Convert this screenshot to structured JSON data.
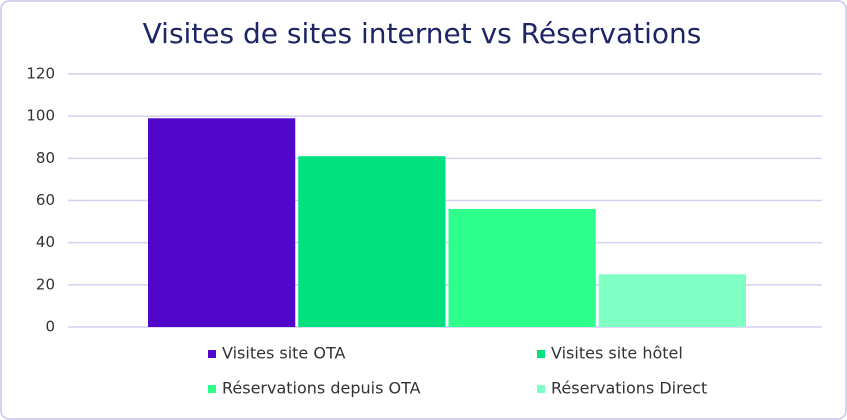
{
  "chart_data": {
    "type": "bar",
    "title": "Visites de sites internet vs Réservations",
    "series": [
      {
        "name": "Visites site OTA",
        "color": "#5107c9",
        "values": [
          99
        ]
      },
      {
        "name": "Visites site hôtel",
        "color": "#00e07f",
        "values": [
          81
        ]
      },
      {
        "name": "Réservations depuis OTA",
        "color": "#2eff8c",
        "values": [
          56
        ]
      },
      {
        "name": "Réservations Direct",
        "color": "#80ffc4",
        "values": [
          25
        ]
      }
    ],
    "ylim": [
      0,
      120
    ],
    "yticks": [
      0,
      20,
      40,
      60,
      80,
      100,
      120
    ],
    "grid": true
  }
}
